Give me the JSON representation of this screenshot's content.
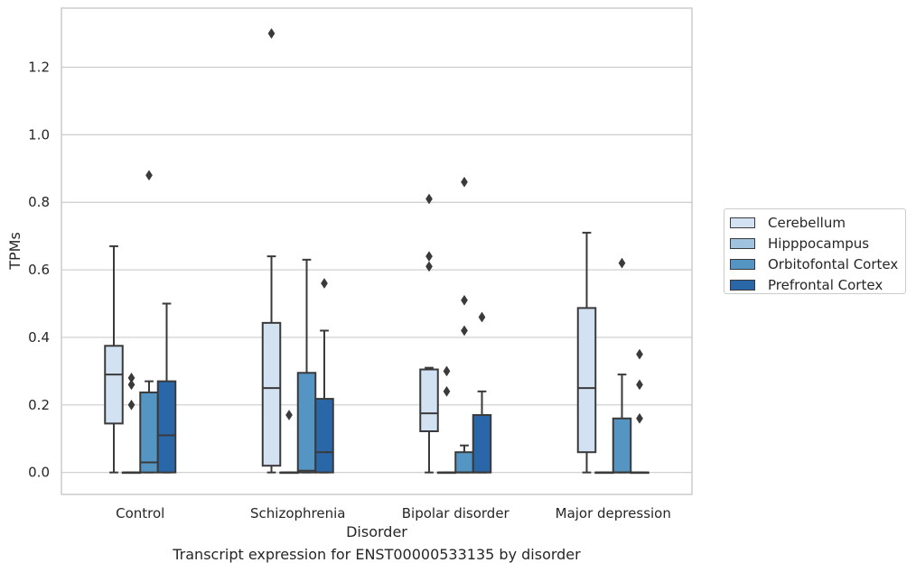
{
  "caption": "Transcript expression for ENST00000533135 by disorder",
  "chart_data": {
    "type": "box",
    "xlabel": "Disorder",
    "ylabel": "TPMs",
    "ylim": [
      -0.065,
      1.375
    ],
    "yticks": [
      0.0,
      0.2,
      0.4,
      0.6,
      0.8,
      1.0,
      1.2
    ],
    "ytick_labels": [
      "0.0",
      "0.2",
      "0.4",
      "0.6",
      "0.8",
      "1.0",
      "1.2"
    ],
    "grid": true,
    "legend_position": "right",
    "categories": [
      "Control",
      "Schizophrenia",
      "Bipolar disorder",
      "Major depression"
    ],
    "series": [
      {
        "name": "Cerebellum",
        "color": "#d3e2f2",
        "boxes": [
          {
            "whisker_low": 0.0,
            "q1": 0.145,
            "median": 0.29,
            "q3": 0.375,
            "whisker_high": 0.67,
            "outliers": []
          },
          {
            "whisker_low": 0.0,
            "q1": 0.02,
            "median": 0.25,
            "q3": 0.443,
            "whisker_high": 0.64,
            "outliers": [
              1.3
            ]
          },
          {
            "whisker_low": 0.0,
            "q1": 0.122,
            "median": 0.175,
            "q3": 0.305,
            "whisker_high": 0.31,
            "outliers": [
              0.61,
              0.64,
              0.81
            ]
          },
          {
            "whisker_low": 0.0,
            "q1": 0.06,
            "median": 0.25,
            "q3": 0.487,
            "whisker_high": 0.71,
            "outliers": []
          }
        ]
      },
      {
        "name": "Hipppocampus",
        "color": "#9fc3df",
        "boxes": [
          {
            "whisker_low": 0.0,
            "q1": 0.0,
            "median": 0.0,
            "q3": 0.0,
            "whisker_high": 0.0,
            "outliers": [
              0.2,
              0.26,
              0.28
            ]
          },
          {
            "whisker_low": 0.0,
            "q1": 0.0,
            "median": 0.0,
            "q3": 0.0,
            "whisker_high": 0.0,
            "outliers": [
              0.17
            ]
          },
          {
            "whisker_low": 0.0,
            "q1": 0.0,
            "median": 0.0,
            "q3": 0.0,
            "whisker_high": 0.0,
            "outliers": [
              0.24,
              0.3
            ]
          },
          {
            "whisker_low": 0.0,
            "q1": 0.0,
            "median": 0.0,
            "q3": 0.0,
            "whisker_high": 0.0,
            "outliers": []
          }
        ]
      },
      {
        "name": "Orbitofontal Cortex",
        "color": "#5595c4",
        "boxes": [
          {
            "whisker_low": 0.0,
            "q1": 0.0,
            "median": 0.03,
            "q3": 0.237,
            "whisker_high": 0.27,
            "outliers": [
              0.88
            ]
          },
          {
            "whisker_low": 0.0,
            "q1": 0.0,
            "median": 0.005,
            "q3": 0.295,
            "whisker_high": 0.63,
            "outliers": []
          },
          {
            "whisker_low": 0.0,
            "q1": 0.0,
            "median": 0.0,
            "q3": 0.06,
            "whisker_high": 0.08,
            "outliers": [
              0.42,
              0.51,
              0.86
            ]
          },
          {
            "whisker_low": 0.0,
            "q1": 0.0,
            "median": 0.0,
            "q3": 0.16,
            "whisker_high": 0.29,
            "outliers": [
              0.62
            ]
          }
        ]
      },
      {
        "name": "Prefrontal Cortex",
        "color": "#2a67a8",
        "boxes": [
          {
            "whisker_low": 0.0,
            "q1": 0.0,
            "median": 0.11,
            "q3": 0.27,
            "whisker_high": 0.5,
            "outliers": []
          },
          {
            "whisker_low": 0.0,
            "q1": 0.0,
            "median": 0.06,
            "q3": 0.218,
            "whisker_high": 0.42,
            "outliers": [
              0.56
            ]
          },
          {
            "whisker_low": 0.0,
            "q1": 0.0,
            "median": 0.0,
            "q3": 0.17,
            "whisker_high": 0.24,
            "outliers": [
              0.46
            ]
          },
          {
            "whisker_low": 0.0,
            "q1": 0.0,
            "median": 0.0,
            "q3": 0.0,
            "whisker_high": 0.0,
            "outliers": [
              0.16,
              0.26,
              0.35
            ]
          }
        ]
      }
    ]
  }
}
